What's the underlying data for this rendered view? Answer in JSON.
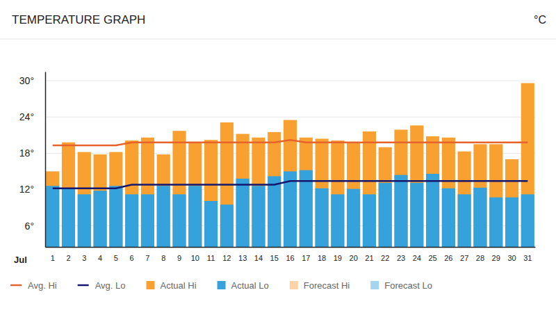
{
  "chart_data": {
    "type": "bar",
    "title": "TEMPERATURE GRAPH",
    "y_label": "°C",
    "x_label": "Jul",
    "categories": [
      "1",
      "2",
      "3",
      "4",
      "5",
      "6",
      "7",
      "8",
      "9",
      "10",
      "11",
      "12",
      "13",
      "14",
      "15",
      "16",
      "17",
      "18",
      "19",
      "20",
      "21",
      "22",
      "23",
      "24",
      "25",
      "26",
      "27",
      "28",
      "29",
      "30",
      "31"
    ],
    "series": [
      {
        "name": "Avg. Hi",
        "type": "line",
        "color": "#e8622c",
        "values": [
          19.3,
          19.3,
          19.3,
          19.3,
          19.3,
          19.8,
          19.8,
          19.8,
          19.8,
          19.8,
          19.8,
          19.8,
          19.8,
          19.8,
          19.8,
          20.2,
          19.8,
          19.8,
          19.8,
          19.8,
          19.8,
          19.8,
          19.8,
          19.8,
          19.8,
          19.8,
          19.8,
          19.8,
          19.8,
          19.8,
          19.8
        ]
      },
      {
        "name": "Avg. Lo",
        "type": "line",
        "color": "#15176e",
        "values": [
          12.2,
          12.2,
          12.2,
          12.2,
          12.2,
          12.8,
          12.8,
          12.8,
          12.8,
          12.8,
          12.8,
          12.8,
          12.8,
          12.8,
          12.8,
          13.4,
          13.4,
          13.4,
          13.4,
          13.4,
          13.4,
          13.4,
          13.4,
          13.4,
          13.4,
          13.4,
          13.4,
          13.4,
          13.4,
          13.4,
          13.4
        ]
      },
      {
        "name": "Actual Hi",
        "type": "bar",
        "color": "#f8a130",
        "values": [
          15.0,
          19.8,
          18.2,
          17.8,
          18.2,
          20.1,
          20.6,
          17.8,
          21.7,
          19.8,
          20.2,
          23.1,
          21.2,
          20.6,
          21.5,
          23.5,
          20.6,
          20.4,
          20.1,
          19.8,
          21.6,
          19.0,
          21.9,
          22.6,
          20.8,
          20.6,
          18.3,
          19.5,
          19.5,
          17.0,
          29.6
        ]
      },
      {
        "name": "Actual Lo",
        "type": "bar",
        "color": "#35a2dc",
        "values": [
          12.6,
          12.1,
          11.2,
          11.8,
          12.6,
          11.2,
          11.2,
          12.6,
          11.2,
          12.6,
          10.1,
          9.5,
          13.8,
          12.6,
          14.2,
          15.0,
          15.2,
          12.2,
          11.2,
          12.1,
          11.2,
          13.1,
          14.4,
          13.1,
          14.6,
          12.2,
          11.2,
          12.3,
          10.7,
          10.7,
          11.2
        ]
      },
      {
        "name": "Forecast Hi",
        "type": "bar",
        "color": "#fbd3a7",
        "values": [
          null,
          null,
          null,
          null,
          null,
          null,
          null,
          null,
          null,
          null,
          null,
          null,
          null,
          null,
          null,
          null,
          null,
          null,
          null,
          null,
          null,
          null,
          null,
          null,
          null,
          null,
          null,
          null,
          null,
          null,
          null
        ]
      },
      {
        "name": "Forecast Lo",
        "type": "bar",
        "color": "#a3d5ef",
        "values": [
          null,
          null,
          null,
          null,
          null,
          null,
          null,
          null,
          null,
          null,
          null,
          null,
          null,
          null,
          null,
          null,
          null,
          null,
          null,
          null,
          null,
          null,
          null,
          null,
          null,
          null,
          null,
          null,
          null,
          null,
          null
        ]
      }
    ],
    "ylim": [
      2.5,
      31.5
    ],
    "yticks": [
      {
        "value": 6,
        "label": "6°"
      },
      {
        "value": 12,
        "label": "12°"
      },
      {
        "value": 18,
        "label": "18°"
      },
      {
        "value": 24,
        "label": "24°"
      },
      {
        "value": 30,
        "label": "30°"
      }
    ],
    "grid": true,
    "legend": "bottom-left"
  }
}
